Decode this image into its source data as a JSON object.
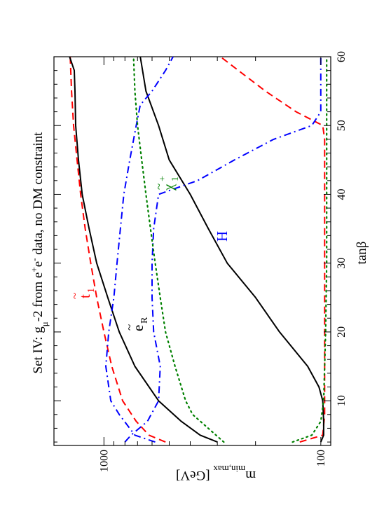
{
  "chart_data": {
    "type": "line",
    "orientation": "rotated 90 degrees counter-clockwise",
    "title": "Set IV: gμ-2 from e+e- data, no DM constraint",
    "title_parts": {
      "prefix": "Set IV: g",
      "sub": "μ",
      "mid1": "-2 from e",
      "sup1": "+",
      "mid2": "e",
      "sup2": "-",
      "suffix": " data, no DM constraint"
    },
    "xlabel": "tanβ",
    "ylabel": {
      "prefix": "m",
      "sub": "min,max",
      "suffix": " [GeV]"
    },
    "xlim": [
      3.5,
      60
    ],
    "ylim": [
      90,
      1700
    ],
    "yscale": "log",
    "x_ticks": [
      "10",
      "20",
      "30",
      "40",
      "50",
      "60"
    ],
    "y_ticks": [
      "100",
      "1000"
    ],
    "annotations": {
      "stop": {
        "base": "t",
        "tilde": "~",
        "sub": "1"
      },
      "selectron": {
        "base": "e",
        "tilde": "~",
        "sub": "R"
      },
      "higgs": {
        "base": "H"
      },
      "chargino": {
        "base": "χ",
        "tilde": "~",
        "sub": "1",
        "sup": "+"
      }
    },
    "series": [
      {
        "key": "stop_max",
        "color": "#ff0000",
        "dash": "dashed",
        "x": [
          4,
          5,
          7,
          10,
          15,
          20,
          25,
          30,
          35,
          40,
          45,
          50,
          55,
          60
        ],
        "y": [
          520,
          620,
          710,
          820,
          920,
          1000,
          1080,
          1150,
          1220,
          1280,
          1330,
          1380,
          1410,
          1430
        ]
      },
      {
        "key": "stop_min",
        "color": "#ff0000",
        "dash": "dashed",
        "x": [
          4,
          5,
          8,
          10,
          15,
          20,
          25,
          30,
          35,
          40,
          45,
          48,
          50,
          52,
          55,
          58,
          60
        ],
        "y": [
          125,
          98,
          96,
          96,
          96,
          96,
          96,
          96,
          96,
          96,
          96,
          96,
          98,
          130,
          180,
          240,
          290
        ]
      },
      {
        "key": "selectron_max",
        "color": "#000000",
        "dash": "solid",
        "x": [
          4,
          5,
          7,
          10,
          15,
          20,
          25,
          30,
          35,
          40,
          45,
          50,
          55,
          58,
          60
        ],
        "y": [
          300,
          360,
          440,
          560,
          720,
          850,
          960,
          1080,
          1170,
          1260,
          1310,
          1350,
          1360,
          1370,
          1440
        ]
      },
      {
        "key": "selectron_min",
        "color": "#000000",
        "dash": "solid",
        "x": [
          4,
          5,
          7,
          10,
          12,
          15,
          20,
          25,
          30,
          35,
          40,
          45,
          50,
          55,
          60
        ],
        "y": [
          100,
          97,
          97,
          98,
          102,
          115,
          155,
          200,
          270,
          330,
          400,
          500,
          560,
          640,
          680
        ]
      },
      {
        "key": "higgs_max",
        "color": "#0000ff",
        "dash": "dashdot",
        "x": [
          4,
          5,
          8,
          10,
          15,
          20,
          25,
          30,
          35,
          40,
          45,
          50,
          53,
          55,
          58,
          60
        ],
        "y": [
          580,
          720,
          850,
          930,
          980,
          950,
          900,
          870,
          840,
          810,
          760,
          710,
          680,
          600,
          520,
          480
        ]
      },
      {
        "key": "higgs_min",
        "color": "#0000ff",
        "dash": "dashdot",
        "x": [
          4,
          5,
          7,
          10,
          15,
          20,
          25,
          30,
          35,
          40,
          42,
          45,
          48,
          50,
          52,
          55,
          58,
          60
        ],
        "y": [
          800,
          750,
          630,
          560,
          550,
          590,
          600,
          600,
          590,
          560,
          370,
          250,
          165,
          110,
          100,
          100,
          100,
          100
        ]
      },
      {
        "key": "chargino_max",
        "color": "#008000",
        "dash": "dotted",
        "x": [
          4,
          8,
          10,
          15,
          20,
          25,
          30,
          35,
          40,
          45,
          50,
          55,
          60
        ],
        "y": [
          280,
          390,
          420,
          470,
          520,
          550,
          580,
          610,
          640,
          670,
          700,
          720,
          730
        ]
      },
      {
        "key": "chargino_min",
        "color": "#008000",
        "dash": "dotted",
        "x": [
          4,
          5,
          7,
          10,
          20,
          30,
          40,
          50,
          60
        ],
        "y": [
          135,
          110,
          100,
          97,
          95,
          94,
          94,
          94,
          94
        ]
      }
    ]
  }
}
